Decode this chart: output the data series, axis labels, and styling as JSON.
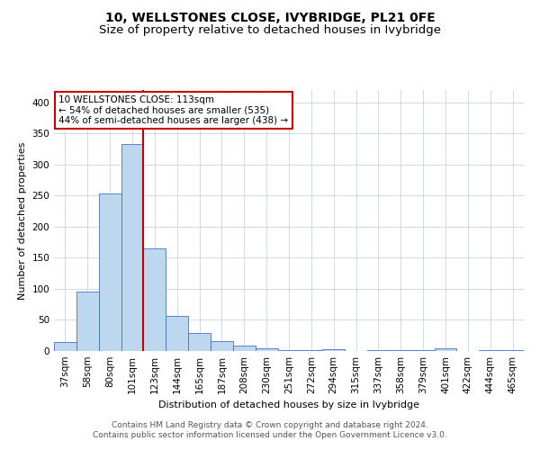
{
  "title": "10, WELLSTONES CLOSE, IVYBRIDGE, PL21 0FE",
  "subtitle": "Size of property relative to detached houses in Ivybridge",
  "xlabel": "Distribution of detached houses by size in Ivybridge",
  "ylabel": "Number of detached properties",
  "categories": [
    "37sqm",
    "58sqm",
    "80sqm",
    "101sqm",
    "123sqm",
    "144sqm",
    "165sqm",
    "187sqm",
    "208sqm",
    "230sqm",
    "251sqm",
    "272sqm",
    "294sqm",
    "315sqm",
    "337sqm",
    "358sqm",
    "379sqm",
    "401sqm",
    "422sqm",
    "444sqm",
    "465sqm"
  ],
  "values": [
    14,
    95,
    253,
    333,
    165,
    57,
    29,
    16,
    9,
    5,
    2,
    1,
    3,
    0,
    1,
    1,
    1,
    4,
    0,
    1,
    2
  ],
  "bar_color": "#bdd7ee",
  "bar_edge_color": "#4472c4",
  "annotation_text": "10 WELLSTONES CLOSE: 113sqm\n← 54% of detached houses are smaller (535)\n44% of semi-detached houses are larger (438) →",
  "annotation_box_color": "#ffffff",
  "annotation_box_edge_color": "#cc0000",
  "vline_color": "#cc0000",
  "vline_x_index": 3.5,
  "grid_color": "#c8d4e3",
  "footer_line1": "Contains HM Land Registry data © Crown copyright and database right 2024.",
  "footer_line2": "Contains public sector information licensed under the Open Government Licence v3.0.",
  "ylim": [
    0,
    420
  ],
  "title_fontsize": 10,
  "subtitle_fontsize": 9.5,
  "label_fontsize": 8,
  "tick_fontsize": 7.5,
  "annotation_fontsize": 7.5,
  "footer_fontsize": 6.5,
  "ylabel_fontsize": 8
}
